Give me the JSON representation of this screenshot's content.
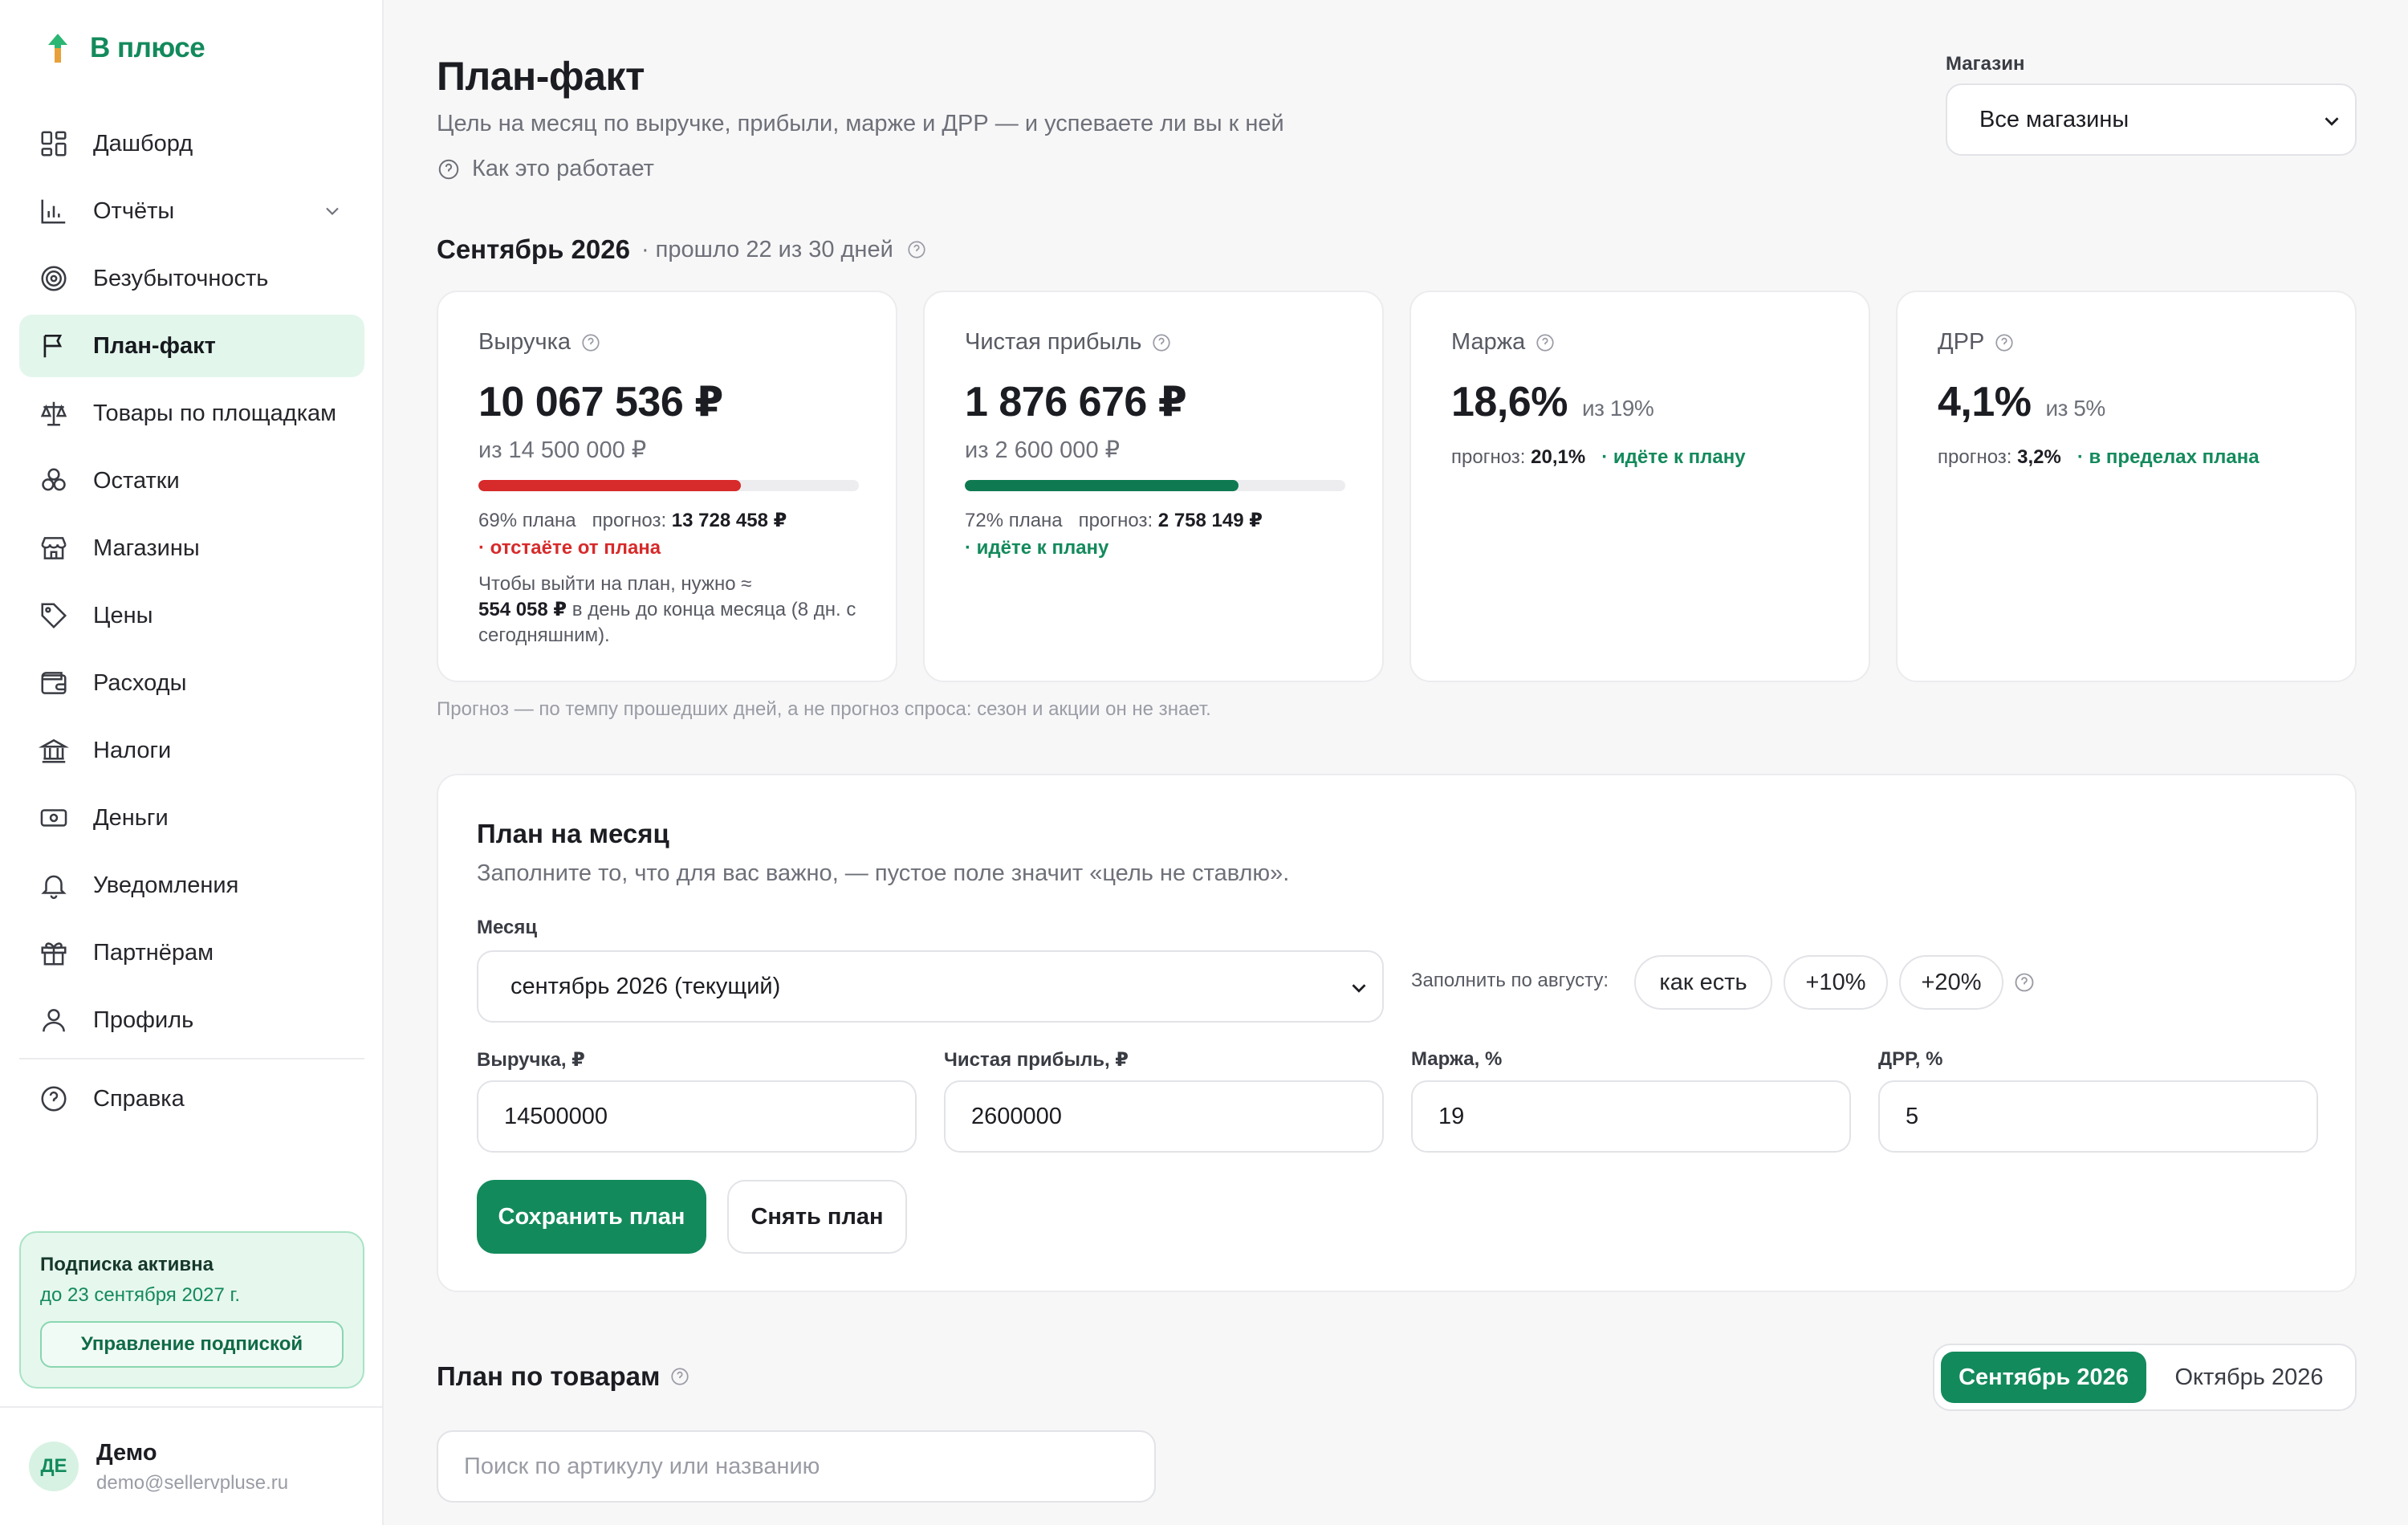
{
  "app": {
    "name": "В плюсе",
    "brand_color": "#138a5c"
  },
  "sidebar": {
    "items": [
      {
        "label": "Дашборд",
        "icon": "dashboard-icon"
      },
      {
        "label": "Отчёты",
        "icon": "bar-chart-icon",
        "expandable": true
      },
      {
        "label": "Безубыточность",
        "icon": "target-icon"
      },
      {
        "label": "План-факт",
        "icon": "flag-icon",
        "active": true
      },
      {
        "label": "Товары по площадкам",
        "icon": "scales-icon"
      },
      {
        "label": "Остатки",
        "icon": "boxes-icon"
      },
      {
        "label": "Магазины",
        "icon": "store-icon"
      },
      {
        "label": "Цены",
        "icon": "tag-icon"
      },
      {
        "label": "Расходы",
        "icon": "wallet-icon"
      },
      {
        "label": "Налоги",
        "icon": "bank-icon"
      },
      {
        "label": "Деньги",
        "icon": "banknote-icon"
      },
      {
        "label": "Уведомления",
        "icon": "bell-icon"
      },
      {
        "label": "Партнёрам",
        "icon": "gift-icon"
      },
      {
        "label": "Профиль",
        "icon": "user-icon"
      },
      {
        "label": "Справка",
        "icon": "help-icon"
      }
    ],
    "subscription": {
      "title": "Подписка активна",
      "until": "до 23 сентября 2027 г.",
      "manage_label": "Управление подпиской"
    },
    "user": {
      "initials": "ДЕ",
      "name": "Демо",
      "email": "demo@sellervpluse.ru"
    }
  },
  "header": {
    "title": "План-факт",
    "subtitle": "Цель на месяц по выручке, прибыли, марже и ДРР — и успеваете ли вы к ней",
    "how_it_works": "Как это работает",
    "store_label": "Магазин",
    "store_value": "Все магазины"
  },
  "period": {
    "title": "Сентябрь 2026",
    "note": "· прошло 22 из 30 дней"
  },
  "kpis": {
    "revenue": {
      "label": "Выручка",
      "value": "10 067 536 ₽",
      "of": "из 14 500 000 ₽",
      "progress": 0.69,
      "bar_color": "#d72a2a",
      "pct_text": "69% плана",
      "forecast_label": "прогноз:",
      "forecast_value": "13 728 458 ₽",
      "status": "· отстаёте от плана",
      "hint_pre": "Чтобы выйти на план, нужно ≈",
      "hint_value": "554 058 ₽",
      "hint_post": "в день до конца месяца (8 дн. с сегодняшним)."
    },
    "profit": {
      "label": "Чистая прибыль",
      "value": "1 876 676 ₽",
      "of": "из 2 600 000 ₽",
      "progress": 0.72,
      "bar_color": "#0f7a52",
      "pct_text": "72% плана",
      "forecast_label": "прогноз:",
      "forecast_value": "2 758 149 ₽",
      "status": "· идёте к плану"
    },
    "margin": {
      "label": "Маржа",
      "value": "18,6%",
      "of": "из 19%",
      "forecast_label": "прогноз:",
      "forecast_value": "20,1%",
      "status": "· идёте к плану"
    },
    "drr": {
      "label": "ДРР",
      "value": "4,1%",
      "of": "из 5%",
      "forecast_label": "прогноз:",
      "forecast_value": "3,2%",
      "status": "· в пределах плана"
    }
  },
  "forecast_note": "Прогноз — по темпу прошедших дней, а не прогноз спроса: сезон и акции он не знает.",
  "plan": {
    "title": "План на месяц",
    "subtitle": "Заполните то, что для вас важно, — пустое поле значит «цель не ставлю».",
    "month_label": "Месяц",
    "month_value": "сентябрь 2026 (текущий)",
    "fill_label": "Заполнить по августу:",
    "chips": [
      "как есть",
      "+10%",
      "+20%"
    ],
    "fields": [
      {
        "label": "Выручка, ₽",
        "value": "14500000"
      },
      {
        "label": "Чистая прибыль, ₽",
        "value": "2600000"
      },
      {
        "label": "Маржа, %",
        "value": "19"
      },
      {
        "label": "ДРР, %",
        "value": "5"
      }
    ],
    "save_label": "Сохранить план",
    "clear_label": "Снять план"
  },
  "goods": {
    "title": "План по товарам",
    "tabs": [
      "Сентябрь 2026",
      "Октябрь 2026"
    ],
    "search_placeholder": "Поиск по артикулу или названию"
  }
}
